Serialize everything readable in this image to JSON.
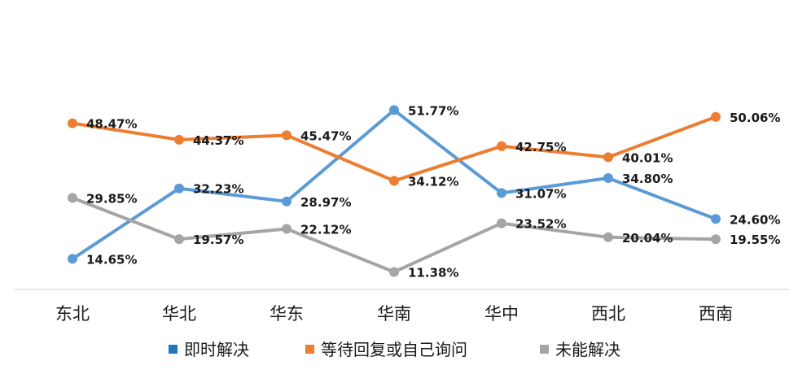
{
  "chart_data": {
    "type": "line",
    "categories": [
      "东北",
      "华北",
      "华东",
      "华南",
      "华中",
      "西北",
      "西南"
    ],
    "series": [
      {
        "name": "即时解决",
        "values": [
          14.65,
          32.23,
          28.97,
          51.77,
          31.07,
          34.8,
          24.6
        ],
        "labels": [
          "14.65%",
          "32.23%",
          "28.97%",
          "51.77%",
          "31.07%",
          "34.80%",
          "24.60%"
        ],
        "line_color": "#5b9bd5",
        "legend_color": "#1f77c0"
      },
      {
        "name": "等待回复或自己询问",
        "values": [
          48.47,
          44.37,
          45.47,
          34.12,
          42.75,
          40.01,
          50.06
        ],
        "labels": [
          "48.47%",
          "44.37%",
          "45.47%",
          "34.12%",
          "42.75%",
          "40.01%",
          "50.06%"
        ],
        "line_color": "#ed7d31",
        "legend_color": "#ed7d31"
      },
      {
        "name": "未能解决",
        "values": [
          29.85,
          19.57,
          22.12,
          11.38,
          23.52,
          20.04,
          19.55
        ],
        "labels": [
          "29.85%",
          "19.57%",
          "22.12%",
          "11.38%",
          "23.52%",
          "20.04%",
          "19.55%"
        ],
        "line_color": "#a5a5a5",
        "legend_color": "#a5a5a5"
      }
    ],
    "xlabel": "",
    "ylabel": "",
    "ylim": [
      0,
      70
    ],
    "grid": false,
    "legend_position": "bottom",
    "data_labels": true
  }
}
